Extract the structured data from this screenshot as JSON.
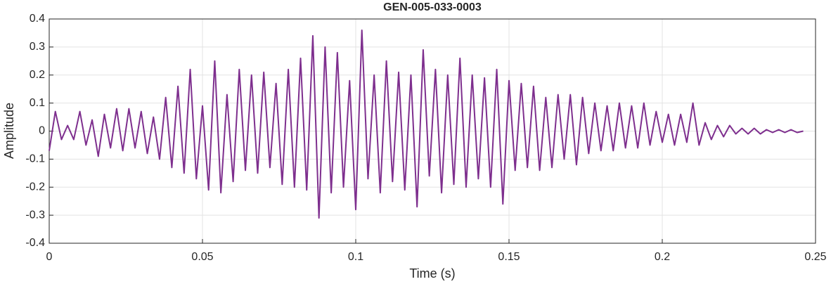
{
  "chart_data": {
    "type": "line",
    "title": "GEN-005-033-0003",
    "xlabel": "Time (s)",
    "ylabel": "Amplitude",
    "xlim": [
      0,
      0.25
    ],
    "xticks": [
      0,
      0.05,
      0.1,
      0.15,
      0.2,
      0.25
    ],
    "ylim": [
      -0.4,
      0.4
    ],
    "yticks": [
      -0.4,
      -0.3,
      -0.2,
      -0.1,
      0,
      0.1,
      0.2,
      0.3,
      0.4
    ],
    "grid": true,
    "x": [
      0,
      0.002,
      0.004,
      0.006,
      0.008,
      0.01,
      0.012,
      0.014,
      0.016,
      0.018,
      0.02,
      0.022,
      0.024,
      0.026,
      0.028,
      0.03,
      0.032,
      0.034,
      0.036,
      0.038,
      0.04,
      0.042,
      0.044,
      0.046,
      0.048,
      0.05,
      0.052,
      0.054,
      0.056,
      0.058,
      0.06,
      0.062,
      0.064,
      0.066,
      0.068,
      0.07,
      0.072,
      0.074,
      0.076,
      0.078,
      0.08,
      0.082,
      0.084,
      0.086,
      0.088,
      0.09,
      0.092,
      0.094,
      0.096,
      0.098,
      0.1,
      0.102,
      0.104,
      0.106,
      0.108,
      0.11,
      0.112,
      0.114,
      0.116,
      0.118,
      0.12,
      0.122,
      0.124,
      0.126,
      0.128,
      0.13,
      0.132,
      0.134,
      0.136,
      0.138,
      0.14,
      0.142,
      0.144,
      0.146,
      0.148,
      0.15,
      0.152,
      0.154,
      0.156,
      0.158,
      0.16,
      0.162,
      0.164,
      0.166,
      0.168,
      0.17,
      0.172,
      0.174,
      0.176,
      0.178,
      0.18,
      0.182,
      0.184,
      0.186,
      0.188,
      0.19,
      0.192,
      0.194,
      0.196,
      0.198,
      0.2,
      0.202,
      0.204,
      0.206,
      0.208,
      0.21,
      0.212,
      0.214,
      0.216,
      0.218,
      0.22,
      0.222,
      0.224,
      0.226,
      0.228,
      0.23,
      0.232,
      0.234,
      0.236,
      0.238,
      0.24,
      0.242,
      0.244,
      0.246
    ],
    "series": [
      {
        "color": "#7e2f8e",
        "values": [
          -0.07,
          0.07,
          -0.03,
          0.02,
          -0.03,
          0.07,
          -0.05,
          0.04,
          -0.09,
          0.06,
          -0.06,
          0.08,
          -0.07,
          0.08,
          -0.06,
          0.07,
          -0.08,
          0.05,
          -0.1,
          0.12,
          -0.13,
          0.16,
          -0.15,
          0.22,
          -0.17,
          0.09,
          -0.21,
          0.25,
          -0.22,
          0.13,
          -0.18,
          0.22,
          -0.14,
          0.2,
          -0.15,
          0.21,
          -0.13,
          0.17,
          -0.19,
          0.22,
          -0.2,
          0.26,
          -0.21,
          0.34,
          -0.31,
          0.3,
          -0.22,
          0.28,
          -0.2,
          0.18,
          -0.28,
          0.36,
          -0.17,
          0.2,
          -0.22,
          0.25,
          -0.18,
          0.21,
          -0.21,
          0.2,
          -0.27,
          0.29,
          -0.16,
          0.22,
          -0.22,
          0.2,
          -0.19,
          0.26,
          -0.2,
          0.2,
          -0.17,
          0.19,
          -0.2,
          0.22,
          -0.26,
          0.18,
          -0.14,
          0.17,
          -0.13,
          0.16,
          -0.14,
          0.12,
          -0.13,
          0.13,
          -0.1,
          0.13,
          -0.12,
          0.12,
          -0.08,
          0.1,
          -0.07,
          0.09,
          -0.07,
          0.1,
          -0.06,
          0.09,
          -0.06,
          0.1,
          -0.05,
          0.07,
          -0.04,
          0.06,
          -0.05,
          0.06,
          -0.04,
          0.1,
          -0.05,
          0.03,
          -0.03,
          0.02,
          -0.02,
          0.02,
          -0.01,
          0.01,
          -0.01,
          0.01,
          -0.01,
          0.005,
          -0.005,
          0.005,
          -0.005,
          0.005,
          -0.005,
          0
        ]
      }
    ]
  }
}
